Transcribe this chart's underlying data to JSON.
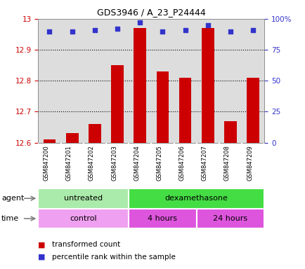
{
  "title": "GDS3946 / A_23_P24444",
  "samples": [
    "GSM847200",
    "GSM847201",
    "GSM847202",
    "GSM847203",
    "GSM847204",
    "GSM847205",
    "GSM847206",
    "GSM847207",
    "GSM847208",
    "GSM847209"
  ],
  "transformed_counts": [
    12.61,
    12.63,
    12.66,
    12.85,
    12.97,
    12.83,
    12.81,
    12.97,
    12.67,
    12.81
  ],
  "percentile_ranks": [
    90,
    90,
    91,
    92,
    97,
    90,
    91,
    95,
    90,
    91
  ],
  "ylim": [
    12.6,
    13.0
  ],
  "y_ticks": [
    12.6,
    12.7,
    12.8,
    12.9,
    13.0
  ],
  "y_ticklabels": [
    "12.6",
    "12.7",
    "12.8",
    "12.9",
    "13"
  ],
  "right_ylim": [
    0,
    100
  ],
  "right_yticks": [
    0,
    25,
    50,
    75,
    100
  ],
  "right_yticklabels": [
    "0",
    "25",
    "50",
    "75",
    "100%"
  ],
  "bar_color": "#cc0000",
  "dot_color": "#3333cc",
  "bar_bottom": 12.6,
  "agent_groups": [
    {
      "label": "untreated",
      "start": 0,
      "end": 4,
      "color": "#aaeaaa"
    },
    {
      "label": "dexamethasone",
      "start": 4,
      "end": 10,
      "color": "#44dd44"
    }
  ],
  "time_groups": [
    {
      "label": "control",
      "start": 0,
      "end": 4,
      "color": "#f0a0f0"
    },
    {
      "label": "4 hours",
      "start": 4,
      "end": 7,
      "color": "#dd55dd"
    },
    {
      "label": "24 hours",
      "start": 7,
      "end": 10,
      "color": "#dd55dd"
    }
  ],
  "legend_items": [
    {
      "color": "#cc0000",
      "label": "transformed count"
    },
    {
      "color": "#3333cc",
      "label": "percentile rank within the sample"
    }
  ],
  "tick_color_left": "#cc0000",
  "tick_color_right": "#3333cc",
  "chart_bg": "#dddddd",
  "sample_box_bg": "#cccccc",
  "sample_box_edge": "#ffffff"
}
